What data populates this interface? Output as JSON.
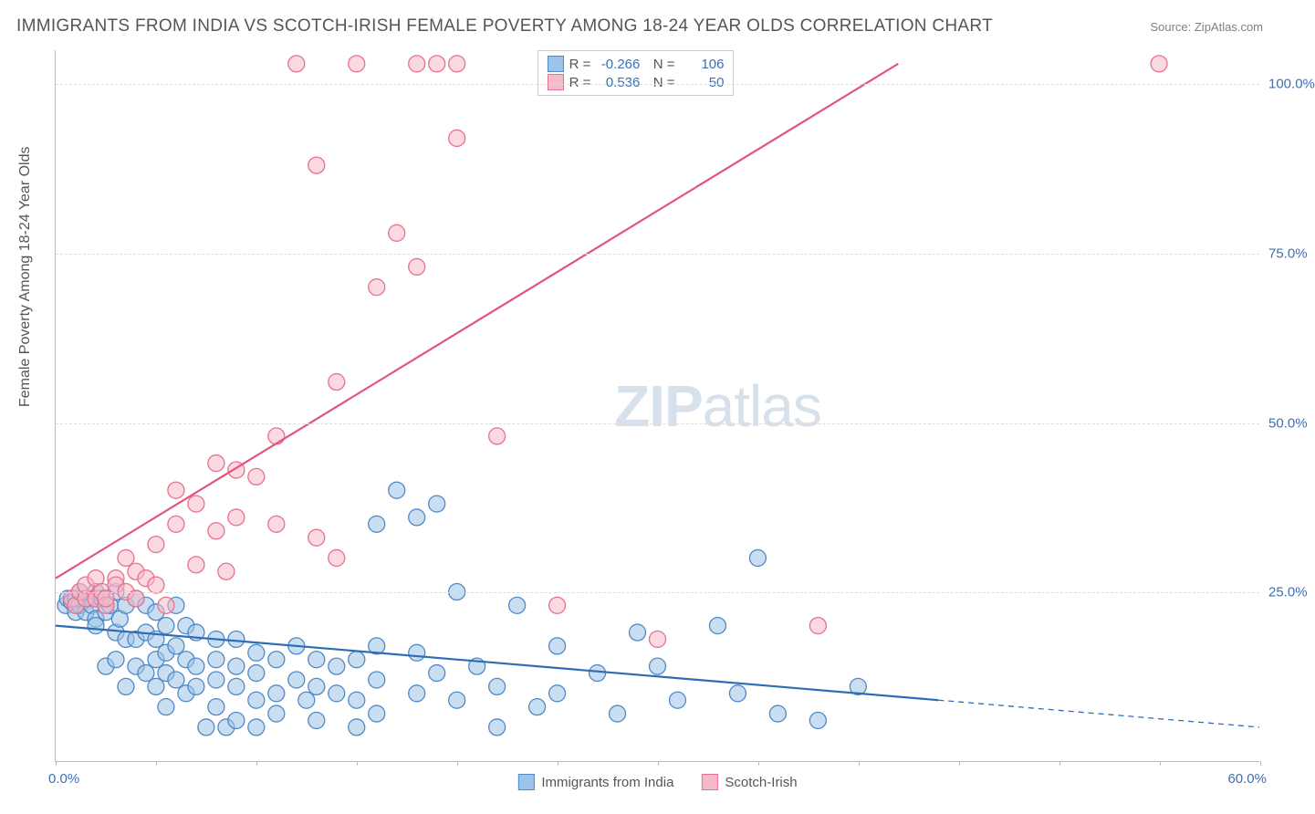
{
  "chart": {
    "type": "scatter",
    "title": "IMMIGRANTS FROM INDIA VS SCOTCH-IRISH FEMALE POVERTY AMONG 18-24 YEAR OLDS CORRELATION CHART",
    "source": "Source: ZipAtlas.com",
    "watermark": "ZIPatlas",
    "y_axis_title": "Female Poverty Among 18-24 Year Olds",
    "background_color": "#ffffff",
    "grid_color": "#dddddd",
    "axis_color": "#bbbbbb",
    "title_color": "#555555",
    "title_fontsize": 19,
    "label_fontsize": 15,
    "xlim": [
      0,
      60
    ],
    "ylim": [
      0,
      105
    ],
    "x_ticks": [
      0,
      5,
      10,
      15,
      20,
      25,
      30,
      35,
      40,
      45,
      50,
      55,
      60
    ],
    "y_ticks": [
      25,
      50,
      75,
      100
    ],
    "y_tick_labels": [
      "25.0%",
      "50.0%",
      "75.0%",
      "100.0%"
    ],
    "x_origin_label": "0.0%",
    "x_max_label": "60.0%",
    "x_label_color": "#3b6fb6",
    "y_label_color": "#3b6fb6",
    "marker_radius": 9,
    "marker_opacity": 0.55,
    "series": [
      {
        "name": "Immigrants from India",
        "fill_color": "#9ec3e8",
        "stroke_color": "#4f89c8",
        "line_color": "#2f6db3",
        "line_width": 2.2,
        "R": "-0.266",
        "N": "106",
        "trend": {
          "x1": 0,
          "y1": 20,
          "x2": 44,
          "y2": 9,
          "dash_x2": 60,
          "dash_y2": 5
        },
        "points": [
          [
            0.5,
            23
          ],
          [
            0.6,
            24
          ],
          [
            0.8,
            23.5
          ],
          [
            1,
            22
          ],
          [
            1,
            24
          ],
          [
            1.2,
            25
          ],
          [
            1.2,
            23
          ],
          [
            1.5,
            24
          ],
          [
            1.5,
            22
          ],
          [
            1.7,
            24
          ],
          [
            1.8,
            23
          ],
          [
            2,
            25
          ],
          [
            2,
            21
          ],
          [
            2,
            20
          ],
          [
            2.3,
            24
          ],
          [
            2.5,
            22
          ],
          [
            2.5,
            14
          ],
          [
            2.7,
            23
          ],
          [
            3,
            25
          ],
          [
            3,
            19
          ],
          [
            3,
            15
          ],
          [
            3.2,
            21
          ],
          [
            3.5,
            23
          ],
          [
            3.5,
            18
          ],
          [
            3.5,
            11
          ],
          [
            4,
            24
          ],
          [
            4,
            18
          ],
          [
            4,
            14
          ],
          [
            4.5,
            23
          ],
          [
            4.5,
            19
          ],
          [
            4.5,
            13
          ],
          [
            5,
            22
          ],
          [
            5,
            18
          ],
          [
            5,
            15
          ],
          [
            5,
            11
          ],
          [
            5.5,
            20
          ],
          [
            5.5,
            16
          ],
          [
            5.5,
            13
          ],
          [
            5.5,
            8
          ],
          [
            6,
            23
          ],
          [
            6,
            17
          ],
          [
            6,
            12
          ],
          [
            6.5,
            20
          ],
          [
            6.5,
            15
          ],
          [
            6.5,
            10
          ],
          [
            7,
            19
          ],
          [
            7,
            14
          ],
          [
            7,
            11
          ],
          [
            7.5,
            5
          ],
          [
            8,
            18
          ],
          [
            8,
            15
          ],
          [
            8,
            12
          ],
          [
            8,
            8
          ],
          [
            8.5,
            5
          ],
          [
            9,
            18
          ],
          [
            9,
            14
          ],
          [
            9,
            11
          ],
          [
            9,
            6
          ],
          [
            10,
            16
          ],
          [
            10,
            13
          ],
          [
            10,
            9
          ],
          [
            10,
            5
          ],
          [
            11,
            15
          ],
          [
            11,
            10
          ],
          [
            11,
            7
          ],
          [
            12,
            17
          ],
          [
            12,
            12
          ],
          [
            12.5,
            9
          ],
          [
            13,
            15
          ],
          [
            13,
            11
          ],
          [
            13,
            6
          ],
          [
            14,
            14
          ],
          [
            14,
            10
          ],
          [
            15,
            15
          ],
          [
            15,
            9
          ],
          [
            15,
            5
          ],
          [
            16,
            35
          ],
          [
            16,
            17
          ],
          [
            16,
            12
          ],
          [
            16,
            7
          ],
          [
            17,
            40
          ],
          [
            18,
            36
          ],
          [
            18,
            16
          ],
          [
            18,
            10
          ],
          [
            19,
            38
          ],
          [
            19,
            13
          ],
          [
            20,
            25
          ],
          [
            20,
            9
          ],
          [
            21,
            14
          ],
          [
            22,
            11
          ],
          [
            22,
            5
          ],
          [
            23,
            23
          ],
          [
            24,
            8
          ],
          [
            25,
            17
          ],
          [
            25,
            10
          ],
          [
            27,
            13
          ],
          [
            28,
            7
          ],
          [
            29,
            19
          ],
          [
            30,
            14
          ],
          [
            31,
            9
          ],
          [
            33,
            20
          ],
          [
            34,
            10
          ],
          [
            35,
            30
          ],
          [
            36,
            7
          ],
          [
            38,
            6
          ],
          [
            40,
            11
          ]
        ]
      },
      {
        "name": "Scotch-Irish",
        "fill_color": "#f5b9c8",
        "stroke_color": "#e8708f",
        "line_color": "#e0567c",
        "line_width": 2.2,
        "R": "0.536",
        "N": "50",
        "trend": {
          "x1": 0,
          "y1": 27,
          "x2": 42,
          "y2": 103,
          "dash_x2": null,
          "dash_y2": null
        },
        "points": [
          [
            0.8,
            24
          ],
          [
            1,
            23
          ],
          [
            1.2,
            25
          ],
          [
            1.5,
            24
          ],
          [
            1.5,
            26
          ],
          [
            2,
            24
          ],
          [
            2,
            27
          ],
          [
            2.3,
            25
          ],
          [
            2.5,
            23
          ],
          [
            2.5,
            24
          ],
          [
            3,
            27
          ],
          [
            3,
            26
          ],
          [
            3.5,
            30
          ],
          [
            3.5,
            25
          ],
          [
            4,
            28
          ],
          [
            4,
            24
          ],
          [
            4.5,
            27
          ],
          [
            5,
            32
          ],
          [
            5,
            26
          ],
          [
            5.5,
            23
          ],
          [
            6,
            40
          ],
          [
            6,
            35
          ],
          [
            7,
            38
          ],
          [
            7,
            29
          ],
          [
            8,
            44
          ],
          [
            8,
            34
          ],
          [
            8.5,
            28
          ],
          [
            9,
            43
          ],
          [
            9,
            36
          ],
          [
            10,
            42
          ],
          [
            11,
            48
          ],
          [
            11,
            35
          ],
          [
            12,
            103
          ],
          [
            13,
            88
          ],
          [
            13,
            33
          ],
          [
            14,
            56
          ],
          [
            14,
            30
          ],
          [
            15,
            103
          ],
          [
            16,
            70
          ],
          [
            17,
            78
          ],
          [
            18,
            73
          ],
          [
            18,
            103
          ],
          [
            19,
            103
          ],
          [
            20,
            92
          ],
          [
            20,
            103
          ],
          [
            22,
            48
          ],
          [
            25,
            23
          ],
          [
            30,
            18
          ],
          [
            38,
            20
          ],
          [
            55,
            103
          ]
        ]
      }
    ]
  }
}
